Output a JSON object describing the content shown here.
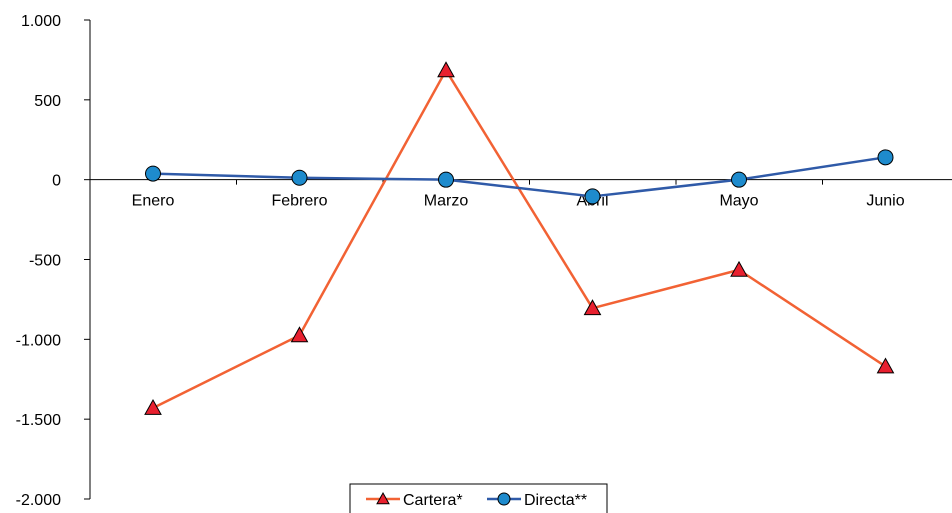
{
  "chart_data": {
    "type": "line",
    "categories": [
      "Enero",
      "Febrero",
      "Marzo",
      "Abril",
      "Mayo",
      "Junio"
    ],
    "series": [
      {
        "name": "Cartera*",
        "values": [
          -1430,
          -975,
          685,
          -805,
          -565,
          -1170
        ],
        "color": "#f26234",
        "marker": "triangle",
        "marker_fill": "#e8202f"
      },
      {
        "name": "Directa**",
        "values": [
          38,
          12,
          0,
          -105,
          0,
          140
        ],
        "color": "#2f5aa8",
        "marker": "circle",
        "marker_fill": "#1e8bcd"
      }
    ],
    "ylim": [
      -2000,
      1000
    ],
    "yticks": [
      -2000,
      -1500,
      -1000,
      -500,
      0,
      500,
      1000
    ],
    "ytick_labels": [
      "-2.000",
      "-1.500",
      "-1.000",
      "-500",
      "0",
      "500",
      "1.000"
    ],
    "grid": false,
    "legend_position": "bottom-center",
    "title": "",
    "xlabel": "",
    "ylabel": ""
  }
}
